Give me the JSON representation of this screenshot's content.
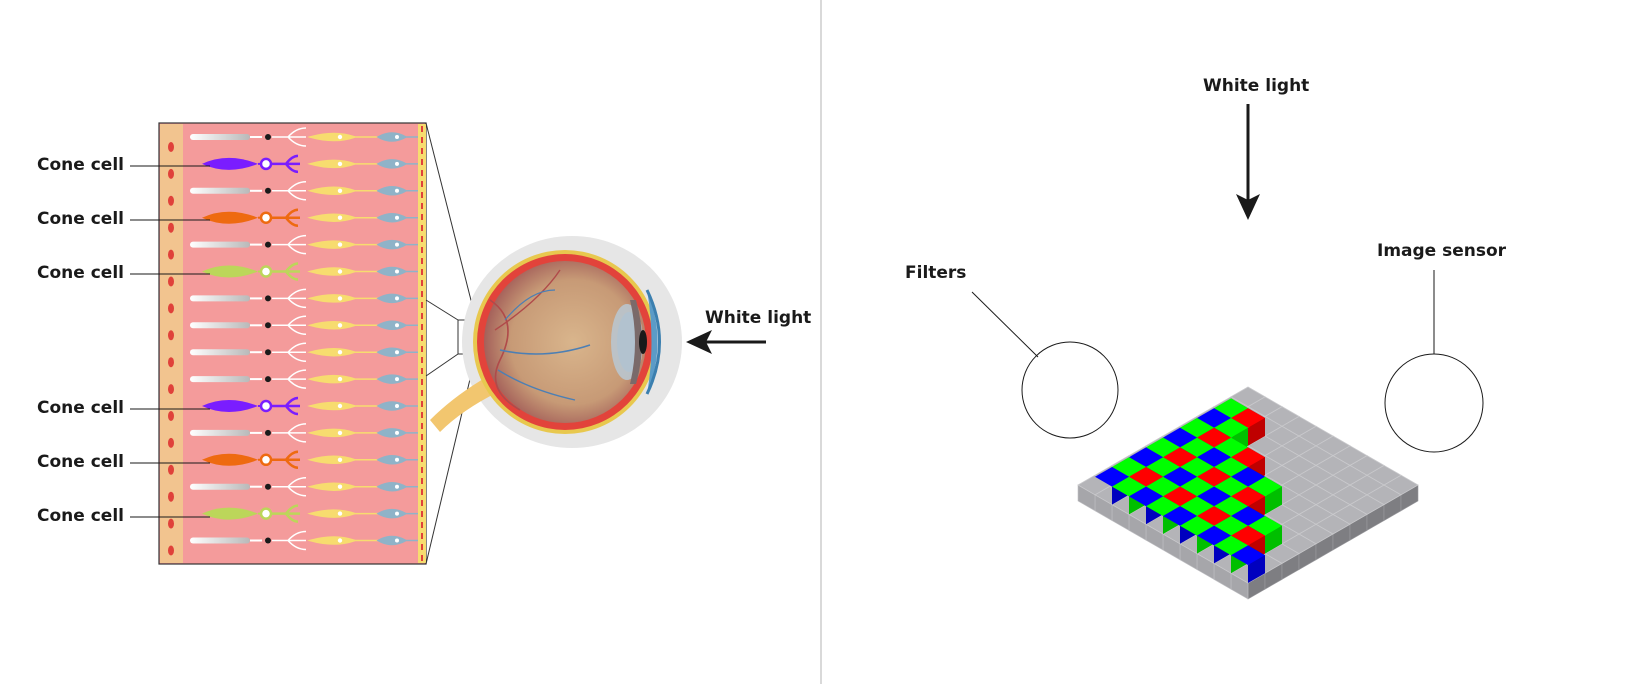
{
  "left_panel": {
    "cone_cells": [
      {
        "label": "Cone cell",
        "color": "#7a1dff"
      },
      {
        "label": "Cone cell",
        "color": "#ee6a10"
      },
      {
        "label": "Cone cell",
        "color": "#bcd65a"
      },
      {
        "label": "Cone cell",
        "color": "#7a1dff"
      },
      {
        "label": "Cone cell",
        "color": "#ee6a10"
      },
      {
        "label": "Cone cell",
        "color": "#bcd65a"
      }
    ],
    "light_label": "White light"
  },
  "right_panel": {
    "light_label": "White light",
    "filters_label": "Filters",
    "sensor_label": "Image sensor"
  },
  "colors": {
    "retina_bg": "#f49b9b",
    "rpe_column": "#f2c48f",
    "rod_cell": "#e8e8e8",
    "bipolar_cell": "#f7dc6f",
    "ganglion_cell": "#8fb3c8",
    "filter_red": "#ff0000",
    "filter_green": "#00ff00",
    "filter_blue": "#0000ff",
    "sensor_gray": "#b4b4b8"
  }
}
